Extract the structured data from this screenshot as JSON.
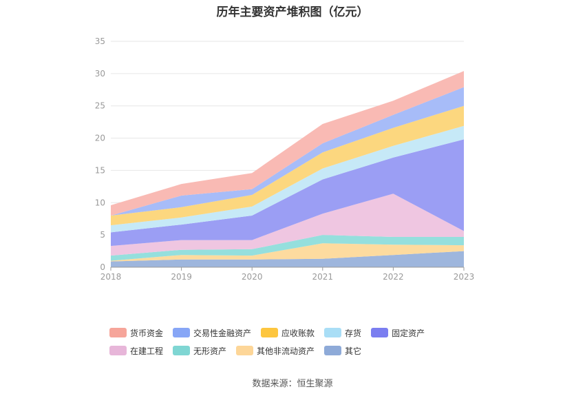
{
  "title": "历年主要资产堆积图（亿元）",
  "source": "数据来源：恒生聚源",
  "chart_data": {
    "type": "area",
    "stacked": true,
    "title": "历年主要资产堆积图（亿元）",
    "xlabel": "",
    "ylabel": "",
    "x": [
      "2018",
      "2019",
      "2020",
      "2021",
      "2022",
      "2023"
    ],
    "ylim": [
      0,
      35
    ],
    "yticks": [
      "0",
      "5",
      "10",
      "15",
      "20",
      "25",
      "30",
      "35"
    ],
    "grid": true,
    "legend_position": "bottom",
    "series": [
      {
        "name": "其它",
        "color": "#9eb6dd",
        "values": [
          0.9,
          1.2,
          1.2,
          1.3,
          1.9,
          2.5
        ]
      },
      {
        "name": "其他非流动资产",
        "color": "#fddb9f",
        "values": [
          0.1,
          0.7,
          0.6,
          2.4,
          1.6,
          0.9
        ]
      },
      {
        "name": "无形资产",
        "color": "#95dfdd",
        "values": [
          0.8,
          0.8,
          1.0,
          1.3,
          1.2,
          1.3
        ]
      },
      {
        "name": "在建工程",
        "color": "#efc6e1",
        "values": [
          1.5,
          1.5,
          1.4,
          3.3,
          6.7,
          0.9
        ]
      },
      {
        "name": "固定资产",
        "color": "#9b9ef4",
        "values": [
          2.1,
          2.4,
          3.8,
          5.3,
          5.6,
          14.2
        ]
      },
      {
        "name": "存货",
        "color": "#c6e9f7",
        "values": [
          1.1,
          1.1,
          1.4,
          1.7,
          1.8,
          2.1
        ]
      },
      {
        "name": "应收账款",
        "color": "#fcd77f",
        "values": [
          1.5,
          1.6,
          1.8,
          2.5,
          2.8,
          3.1
        ]
      },
      {
        "name": "交易性金融资产",
        "color": "#a7bcf8",
        "values": [
          0,
          1.8,
          0.9,
          1.4,
          2.0,
          2.9
        ]
      },
      {
        "name": "货币资金",
        "color": "#f9bab4",
        "values": [
          1.6,
          1.8,
          2.5,
          3.0,
          2.2,
          2.5
        ]
      }
    ],
    "legend": [
      {
        "name": "货币资金",
        "color": "#f6a59a"
      },
      {
        "name": "交易性金融资产",
        "color": "#87a6f6"
      },
      {
        "name": "应收账款",
        "color": "#fdc63f"
      },
      {
        "name": "存货",
        "color": "#a9def6"
      },
      {
        "name": "固定资产",
        "color": "#7b7ef0"
      },
      {
        "name": "在建工程",
        "color": "#e7b6d9"
      },
      {
        "name": "无形资产",
        "color": "#7fd6d3"
      },
      {
        "name": "其他非流动资产",
        "color": "#fdd698"
      },
      {
        "name": "其它",
        "color": "#8eaad8"
      }
    ]
  }
}
